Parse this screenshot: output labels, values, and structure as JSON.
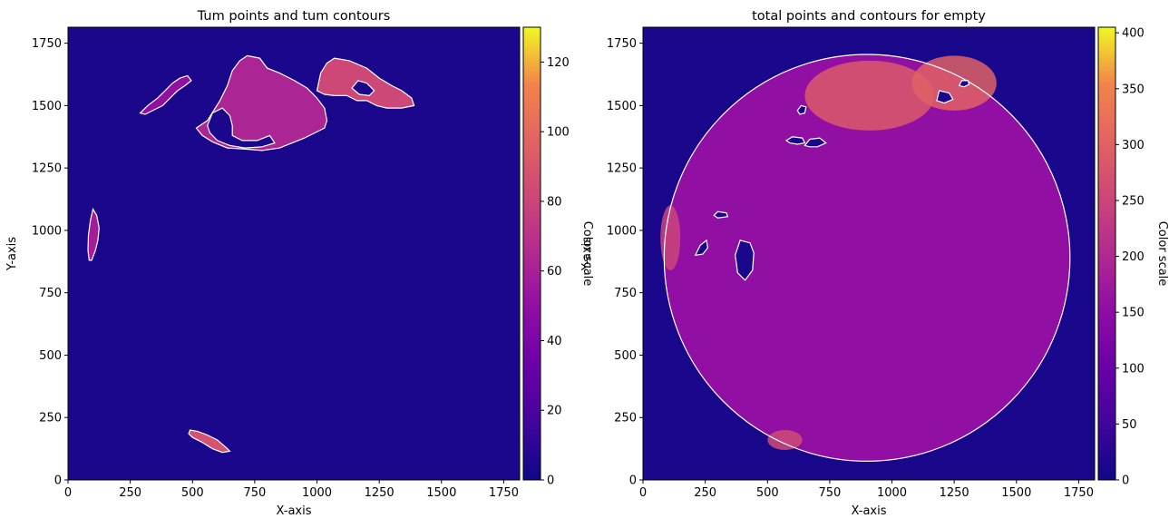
{
  "chart_data": [
    {
      "type": "heatmap",
      "title": "Tum points and tum contours",
      "xlabel": "X-axis",
      "ylabel": "Y-axis",
      "xlim": [
        0,
        1814
      ],
      "ylim": [
        0,
        1814
      ],
      "xticks": [
        0,
        250,
        500,
        750,
        1000,
        1250,
        1500,
        1750
      ],
      "yticks": [
        0,
        250,
        500,
        750,
        1000,
        1250,
        1500,
        1750
      ],
      "colorbar": {
        "label": "Color scale",
        "min": 0,
        "max": 130,
        "ticks": [
          0,
          20,
          40,
          60,
          80,
          100,
          120
        ]
      },
      "colormap": "plasma",
      "background_level": 4,
      "regions": [
        {
          "name": "tumor-top-center",
          "level": 62,
          "contour": [
            [
              515,
              1410
            ],
            [
              560,
              1440
            ],
            [
              610,
              1520
            ],
            [
              640,
              1580
            ],
            [
              660,
              1640
            ],
            [
              690,
              1680
            ],
            [
              720,
              1700
            ],
            [
              770,
              1690
            ],
            [
              800,
              1650
            ],
            [
              850,
              1630
            ],
            [
              910,
              1600
            ],
            [
              960,
              1570
            ],
            [
              1000,
              1530
            ],
            [
              1030,
              1490
            ],
            [
              1040,
              1440
            ],
            [
              1030,
              1410
            ],
            [
              990,
              1390
            ],
            [
              950,
              1370
            ],
            [
              900,
              1350
            ],
            [
              850,
              1330
            ],
            [
              780,
              1320
            ],
            [
              720,
              1325
            ],
            [
              640,
              1330
            ],
            [
              580,
              1355
            ],
            [
              540,
              1380
            ]
          ]
        },
        {
          "name": "tumor-top-right",
          "level": 82,
          "contour": [
            [
              1000,
              1560
            ],
            [
              1015,
              1630
            ],
            [
              1040,
              1670
            ],
            [
              1070,
              1690
            ],
            [
              1130,
              1680
            ],
            [
              1200,
              1650
            ],
            [
              1250,
              1610
            ],
            [
              1300,
              1580
            ],
            [
              1340,
              1560
            ],
            [
              1380,
              1530
            ],
            [
              1390,
              1500
            ],
            [
              1340,
              1490
            ],
            [
              1280,
              1490
            ],
            [
              1240,
              1500
            ],
            [
              1200,
              1520
            ],
            [
              1160,
              1520
            ],
            [
              1120,
              1540
            ],
            [
              1070,
              1540
            ],
            [
              1030,
              1545
            ]
          ]
        },
        {
          "name": "tumor-top-left-streak",
          "level": 50,
          "contour": [
            [
              290,
              1470
            ],
            [
              320,
              1500
            ],
            [
              360,
              1530
            ],
            [
              390,
              1560
            ],
            [
              420,
              1590
            ],
            [
              450,
              1610
            ],
            [
              480,
              1620
            ],
            [
              495,
              1600
            ],
            [
              470,
              1580
            ],
            [
              440,
              1560
            ],
            [
              410,
              1530
            ],
            [
              380,
              1500
            ],
            [
              340,
              1480
            ],
            [
              310,
              1465
            ]
          ]
        },
        {
          "name": "tumor-left-edge",
          "level": 58,
          "contour": [
            [
              85,
              880
            ],
            [
              80,
              920
            ],
            [
              82,
              980
            ],
            [
              90,
              1040
            ],
            [
              100,
              1085
            ],
            [
              115,
              1060
            ],
            [
              125,
              1010
            ],
            [
              120,
              960
            ],
            [
              110,
              920
            ],
            [
              95,
              880
            ]
          ]
        },
        {
          "name": "tumor-bottom",
          "level": 88,
          "contour": [
            [
              490,
              200
            ],
            [
              520,
              195
            ],
            [
              560,
              180
            ],
            [
              600,
              160
            ],
            [
              640,
              125
            ],
            [
              650,
              115
            ],
            [
              620,
              110
            ],
            [
              580,
              125
            ],
            [
              540,
              150
            ],
            [
              500,
              170
            ],
            [
              485,
              185
            ]
          ]
        }
      ],
      "holes": [
        {
          "name": "hole-top-center",
          "contour": [
            [
              560,
              1420
            ],
            [
              580,
              1470
            ],
            [
              620,
              1490
            ],
            [
              650,
              1460
            ],
            [
              660,
              1420
            ],
            [
              660,
              1380
            ],
            [
              700,
              1360
            ],
            [
              760,
              1360
            ],
            [
              810,
              1380
            ],
            [
              830,
              1350
            ],
            [
              780,
              1335
            ],
            [
              710,
              1330
            ],
            [
              650,
              1340
            ],
            [
              600,
              1360
            ],
            [
              570,
              1390
            ]
          ]
        },
        {
          "name": "hole-top-right",
          "contour": [
            [
              1140,
              1570
            ],
            [
              1165,
              1600
            ],
            [
              1200,
              1590
            ],
            [
              1230,
              1560
            ],
            [
              1210,
              1540
            ],
            [
              1170,
              1545
            ]
          ]
        }
      ]
    },
    {
      "type": "heatmap",
      "title": "total points and contours for empty",
      "xlabel": "X-axis",
      "ylabel": "Y-axis",
      "xlim": [
        0,
        1814
      ],
      "ylim": [
        0,
        1814
      ],
      "xticks": [
        0,
        250,
        500,
        750,
        1000,
        1250,
        1500,
        1750
      ],
      "yticks": [
        0,
        250,
        500,
        750,
        1000,
        1250,
        1500,
        1750
      ],
      "colorbar": {
        "label": "Color scale",
        "min": 0,
        "max": 405,
        "ticks": [
          0,
          50,
          100,
          150,
          200,
          250,
          300,
          350,
          400
        ]
      },
      "colormap": "plasma",
      "background_level": 12,
      "disk": {
        "center": [
          900,
          890
        ],
        "radius": 815,
        "level": 155
      },
      "hot_regions": [
        {
          "name": "hot-top-center",
          "level": 285,
          "center": [
            910,
            1540
          ],
          "rx": 260,
          "ry": 140
        },
        {
          "name": "hot-top-right",
          "level": 300,
          "center": [
            1250,
            1590
          ],
          "rx": 170,
          "ry": 110
        },
        {
          "name": "hot-left-edge",
          "level": 250,
          "center": [
            110,
            970
          ],
          "rx": 40,
          "ry": 130
        },
        {
          "name": "hot-bottom-left",
          "level": 260,
          "center": [
            570,
            160
          ],
          "rx": 70,
          "ry": 40
        }
      ],
      "empty_contours": [
        {
          "name": "empty-a",
          "contour": [
            [
              575,
              1360
            ],
            [
              600,
              1375
            ],
            [
              640,
              1370
            ],
            [
              650,
              1350
            ],
            [
              620,
              1345
            ],
            [
              590,
              1350
            ]
          ]
        },
        {
          "name": "empty-b",
          "contour": [
            [
              650,
              1340
            ],
            [
              670,
              1365
            ],
            [
              710,
              1370
            ],
            [
              735,
              1350
            ],
            [
              700,
              1335
            ],
            [
              670,
              1335
            ]
          ]
        },
        {
          "name": "empty-c",
          "contour": [
            [
              620,
              1480
            ],
            [
              635,
              1500
            ],
            [
              655,
              1495
            ],
            [
              650,
              1470
            ],
            [
              630,
              1465
            ]
          ]
        },
        {
          "name": "empty-d",
          "contour": [
            [
              285,
              1060
            ],
            [
              300,
              1075
            ],
            [
              335,
              1070
            ],
            [
              340,
              1055
            ],
            [
              300,
              1050
            ]
          ]
        },
        {
          "name": "empty-e",
          "contour": [
            [
              210,
              900
            ],
            [
              230,
              940
            ],
            [
              255,
              960
            ],
            [
              260,
              930
            ],
            [
              240,
              905
            ]
          ]
        },
        {
          "name": "empty-f",
          "contour": [
            [
              370,
              900
            ],
            [
              390,
              960
            ],
            [
              430,
              950
            ],
            [
              445,
              910
            ],
            [
              440,
              840
            ],
            [
              410,
              800
            ],
            [
              380,
              830
            ],
            [
              375,
              870
            ]
          ]
        },
        {
          "name": "empty-g",
          "contour": [
            [
              1180,
              1520
            ],
            [
              1190,
              1560
            ],
            [
              1230,
              1550
            ],
            [
              1245,
              1525
            ],
            [
              1210,
              1510
            ]
          ]
        },
        {
          "name": "empty-h",
          "contour": [
            [
              1270,
              1580
            ],
            [
              1280,
              1600
            ],
            [
              1305,
              1600
            ],
            [
              1310,
              1585
            ],
            [
              1290,
              1575
            ]
          ]
        }
      ]
    }
  ]
}
